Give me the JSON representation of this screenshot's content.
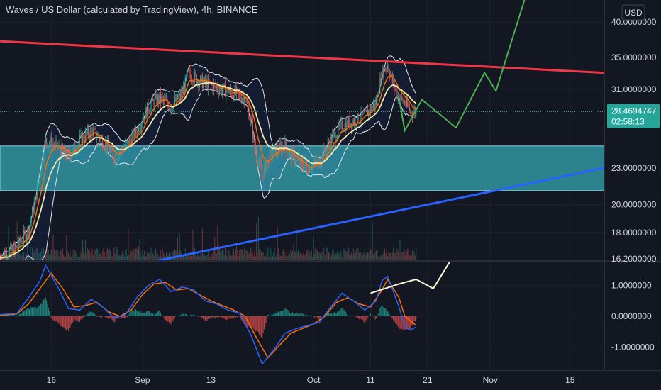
{
  "header": {
    "title": "Waves / US Dollar (calculated by TradingView), 4h, BINANCE",
    "currency_label": "USD"
  },
  "current_price": {
    "value": "28.4694747",
    "countdown": "02:58:13",
    "color": "#26a69a"
  },
  "colors": {
    "background": "#131722",
    "up": "#26a69a",
    "down": "#ef5350",
    "resistance": "#f23645",
    "support": "#2962ff",
    "zone": "#33a1ad",
    "projection": "#4caf50",
    "bollinger": "#e0e3eb",
    "ema_fast": "#ff6d00",
    "ema_slow": "#f5e7a8",
    "macd": "#2962ff",
    "signal": "#ff6d00",
    "macd_projection": "#fffcd4"
  },
  "chart_data": [
    {
      "type": "line",
      "panel": "price",
      "title": "Waves / US Dollar (calculated by TradingView), 4h, BINANCE",
      "y_scale": "log",
      "ylim": [
        16.2,
        43.5
      ],
      "y_ticks": [
        "40.0000000",
        "35.0000000",
        "31.0000000",
        "23.0000000",
        "20.0000000",
        "18.0000000",
        "16.2000000"
      ],
      "y_tick_values": [
        40,
        35,
        31,
        23,
        20,
        18,
        16.2
      ],
      "x_range": [
        "2021-08-07",
        "2021-11-21"
      ],
      "x_ticks": [
        {
          "label": "16",
          "date": "2021-08-16"
        },
        {
          "label": "Sep",
          "date": "2021-09-01"
        },
        {
          "label": "13",
          "date": "2021-09-13"
        },
        {
          "label": "Oct",
          "date": "2021-10-01"
        },
        {
          "label": "11",
          "date": "2021-10-11"
        },
        {
          "label": "21",
          "date": "2021-10-21"
        },
        {
          "label": "Nov",
          "date": "2021-11-01"
        },
        {
          "label": "15",
          "date": "2021-11-15"
        }
      ],
      "price_path": [
        [
          "2021-08-07",
          16.4
        ],
        [
          "2021-08-10",
          17.0
        ],
        [
          "2021-08-12",
          18.2
        ],
        [
          "2021-08-13",
          20.0
        ],
        [
          "2021-08-14",
          22.5
        ],
        [
          "2021-08-15",
          25.5
        ],
        [
          "2021-08-17",
          25.0
        ],
        [
          "2021-08-19",
          24.0
        ],
        [
          "2021-08-21",
          25.5
        ],
        [
          "2021-08-23",
          26.5
        ],
        [
          "2021-08-25",
          25.5
        ],
        [
          "2021-08-27",
          24.0
        ],
        [
          "2021-08-29",
          25.0
        ],
        [
          "2021-08-31",
          26.5
        ],
        [
          "2021-09-02",
          29.0
        ],
        [
          "2021-09-04",
          30.0
        ],
        [
          "2021-09-06",
          29.0
        ],
        [
          "2021-09-08",
          30.5
        ],
        [
          "2021-09-09",
          33.0
        ],
        [
          "2021-09-11",
          32.0
        ],
        [
          "2021-09-13",
          31.5
        ],
        [
          "2021-09-15",
          31.0
        ],
        [
          "2021-09-17",
          30.5
        ],
        [
          "2021-09-19",
          30.0
        ],
        [
          "2021-09-20",
          27.5
        ],
        [
          "2021-09-21",
          24.0
        ],
        [
          "2021-09-22",
          22.5
        ],
        [
          "2021-09-24",
          24.5
        ],
        [
          "2021-09-26",
          25.0
        ],
        [
          "2021-09-28",
          23.5
        ],
        [
          "2021-09-30",
          23.0
        ],
        [
          "2021-10-02",
          23.5
        ],
        [
          "2021-10-04",
          25.5
        ],
        [
          "2021-10-06",
          27.0
        ],
        [
          "2021-10-08",
          27.5
        ],
        [
          "2021-10-10",
          28.0
        ],
        [
          "2021-10-12",
          29.5
        ],
        [
          "2021-10-13",
          33.0
        ],
        [
          "2021-10-14",
          34.0
        ],
        [
          "2021-10-15",
          31.5
        ],
        [
          "2021-10-16",
          30.0
        ],
        [
          "2021-10-17",
          29.5
        ],
        [
          "2021-10-18",
          28.5
        ],
        [
          "2021-10-19",
          28.47
        ]
      ],
      "price_range_lines": [
        {
          "name": "",
          "points": [
            [
              "2021-08-07",
              37.2
            ],
            [
              "2021-11-21",
              33.0
            ]
          ],
          "color_key": "resistance"
        },
        {
          "name": "",
          "points": [
            [
              "2021-09-04",
              16.2
            ],
            [
              "2021-11-21",
              23.0
            ]
          ],
          "color_key": "support"
        }
      ],
      "price_zone": {
        "low": 21.1,
        "high": 25.0,
        "color_key": "zone"
      },
      "projection_path": [
        [
          "2021-10-16",
          30.0
        ],
        [
          "2021-10-17",
          26.5
        ],
        [
          "2021-10-20",
          29.8
        ],
        [
          "2021-10-26",
          26.8
        ],
        [
          "2021-10-31",
          33.0
        ],
        [
          "2021-11-02",
          30.8
        ],
        [
          "2021-11-07",
          43.5
        ]
      ]
    },
    {
      "type": "bar",
      "panel": "volume",
      "note_unit": "relative",
      "x_range": [
        "2021-08-07",
        "2021-10-19"
      ]
    },
    {
      "type": "line",
      "panel": "macd",
      "ylim": [
        -1.75,
        1.75
      ],
      "y_ticks": [
        "1.0000000",
        "0.0000000",
        "-1.0000000"
      ],
      "y_tick_values": [
        1,
        0,
        -1
      ],
      "macd_path": [
        [
          "2021-08-07",
          0.05
        ],
        [
          "2021-08-10",
          0.1
        ],
        [
          "2021-08-12",
          0.6
        ],
        [
          "2021-08-14",
          1.15
        ],
        [
          "2021-08-15",
          1.65
        ],
        [
          "2021-08-17",
          1.0
        ],
        [
          "2021-08-19",
          0.25
        ],
        [
          "2021-08-21",
          0.2
        ],
        [
          "2021-08-23",
          0.55
        ],
        [
          "2021-08-25",
          0.3
        ],
        [
          "2021-08-27",
          -0.05
        ],
        [
          "2021-08-29",
          0.05
        ],
        [
          "2021-08-31",
          0.6
        ],
        [
          "2021-09-02",
          1.0
        ],
        [
          "2021-09-04",
          1.2
        ],
        [
          "2021-09-06",
          0.8
        ],
        [
          "2021-09-08",
          0.95
        ],
        [
          "2021-09-10",
          0.85
        ],
        [
          "2021-09-12",
          0.5
        ],
        [
          "2021-09-14",
          0.4
        ],
        [
          "2021-09-16",
          0.2
        ],
        [
          "2021-09-18",
          0.1
        ],
        [
          "2021-09-20",
          -0.6
        ],
        [
          "2021-09-22",
          -1.55
        ],
        [
          "2021-09-24",
          -1.1
        ],
        [
          "2021-09-26",
          -0.55
        ],
        [
          "2021-09-28",
          -0.4
        ],
        [
          "2021-09-30",
          -0.3
        ],
        [
          "2021-10-02",
          -0.2
        ],
        [
          "2021-10-04",
          0.3
        ],
        [
          "2021-10-06",
          0.75
        ],
        [
          "2021-10-08",
          0.5
        ],
        [
          "2021-10-10",
          0.2
        ],
        [
          "2021-10-12",
          0.5
        ],
        [
          "2021-10-13",
          1.15
        ],
        [
          "2021-10-14",
          1.3
        ],
        [
          "2021-10-16",
          0.3
        ],
        [
          "2021-10-17",
          -0.35
        ],
        [
          "2021-10-18",
          -0.45
        ],
        [
          "2021-10-19",
          -0.35
        ]
      ],
      "signal_path": [
        [
          "2021-08-07",
          0.02
        ],
        [
          "2021-08-10",
          0.08
        ],
        [
          "2021-08-12",
          0.4
        ],
        [
          "2021-08-14",
          0.9
        ],
        [
          "2021-08-16",
          1.4
        ],
        [
          "2021-08-18",
          0.9
        ],
        [
          "2021-08-20",
          0.3
        ],
        [
          "2021-08-22",
          0.35
        ],
        [
          "2021-08-24",
          0.45
        ],
        [
          "2021-08-26",
          0.15
        ],
        [
          "2021-08-28",
          0.0
        ],
        [
          "2021-08-30",
          0.2
        ],
        [
          "2021-09-01",
          0.7
        ],
        [
          "2021-09-03",
          1.05
        ],
        [
          "2021-09-05",
          1.1
        ],
        [
          "2021-09-07",
          0.85
        ],
        [
          "2021-09-09",
          0.9
        ],
        [
          "2021-09-11",
          0.7
        ],
        [
          "2021-09-13",
          0.5
        ],
        [
          "2021-09-15",
          0.35
        ],
        [
          "2021-09-17",
          0.2
        ],
        [
          "2021-09-19",
          0.0
        ],
        [
          "2021-09-21",
          -0.7
        ],
        [
          "2021-09-23",
          -1.35
        ],
        [
          "2021-09-25",
          -0.95
        ],
        [
          "2021-09-27",
          -0.55
        ],
        [
          "2021-09-29",
          -0.4
        ],
        [
          "2021-10-01",
          -0.25
        ],
        [
          "2021-10-03",
          0.0
        ],
        [
          "2021-10-05",
          0.45
        ],
        [
          "2021-10-07",
          0.6
        ],
        [
          "2021-10-09",
          0.4
        ],
        [
          "2021-10-11",
          0.3
        ],
        [
          "2021-10-13",
          0.85
        ],
        [
          "2021-10-14",
          1.2
        ],
        [
          "2021-10-16",
          0.6
        ],
        [
          "2021-10-17",
          0.0
        ],
        [
          "2021-10-19",
          -0.3
        ]
      ],
      "macd_projection_path": [
        [
          "2021-10-11",
          0.75
        ],
        [
          "2021-10-16",
          1.05
        ],
        [
          "2021-10-19",
          1.2
        ],
        [
          "2021-10-22",
          0.9
        ],
        [
          "2021-10-25",
          1.8
        ]
      ]
    }
  ]
}
